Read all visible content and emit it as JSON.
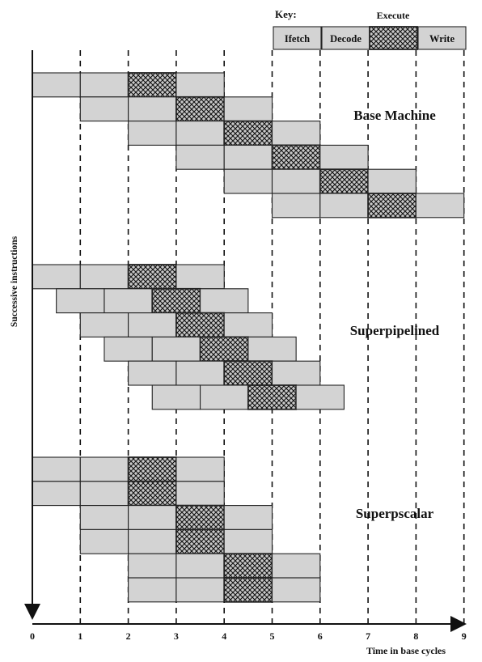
{
  "key": {
    "title": "Key:",
    "execute_label": "Execute",
    "stages": [
      {
        "name": "Ifetch",
        "label": "Ifetch"
      },
      {
        "name": "Decode",
        "label": "Decode"
      },
      {
        "name": "Execute",
        "label": ""
      },
      {
        "name": "Write",
        "label": "Write"
      }
    ]
  },
  "colors": {
    "stage_fill": "#d3d3d3",
    "execute_fill": "#c8c8c8",
    "hatch": "#111111",
    "line": "#111111"
  },
  "y_axis_label": "Successive instructions",
  "x_axis_label": "Time in base cycles",
  "ticks": [
    "0",
    "1",
    "2",
    "3",
    "4",
    "5",
    "6",
    "7",
    "8",
    "9"
  ],
  "sections": [
    {
      "name": "Base Machine",
      "stage_duration": 1,
      "instruction_starts": [
        0,
        1,
        2,
        3,
        4,
        5
      ]
    },
    {
      "name": "Superpipelined",
      "stage_duration": 1,
      "instruction_starts": [
        0,
        0.5,
        1,
        1.5,
        2,
        2.5
      ]
    },
    {
      "name": "Superpscalar",
      "stage_duration": 1,
      "instruction_starts": [
        0,
        0,
        1,
        1,
        2,
        2
      ]
    }
  ]
}
